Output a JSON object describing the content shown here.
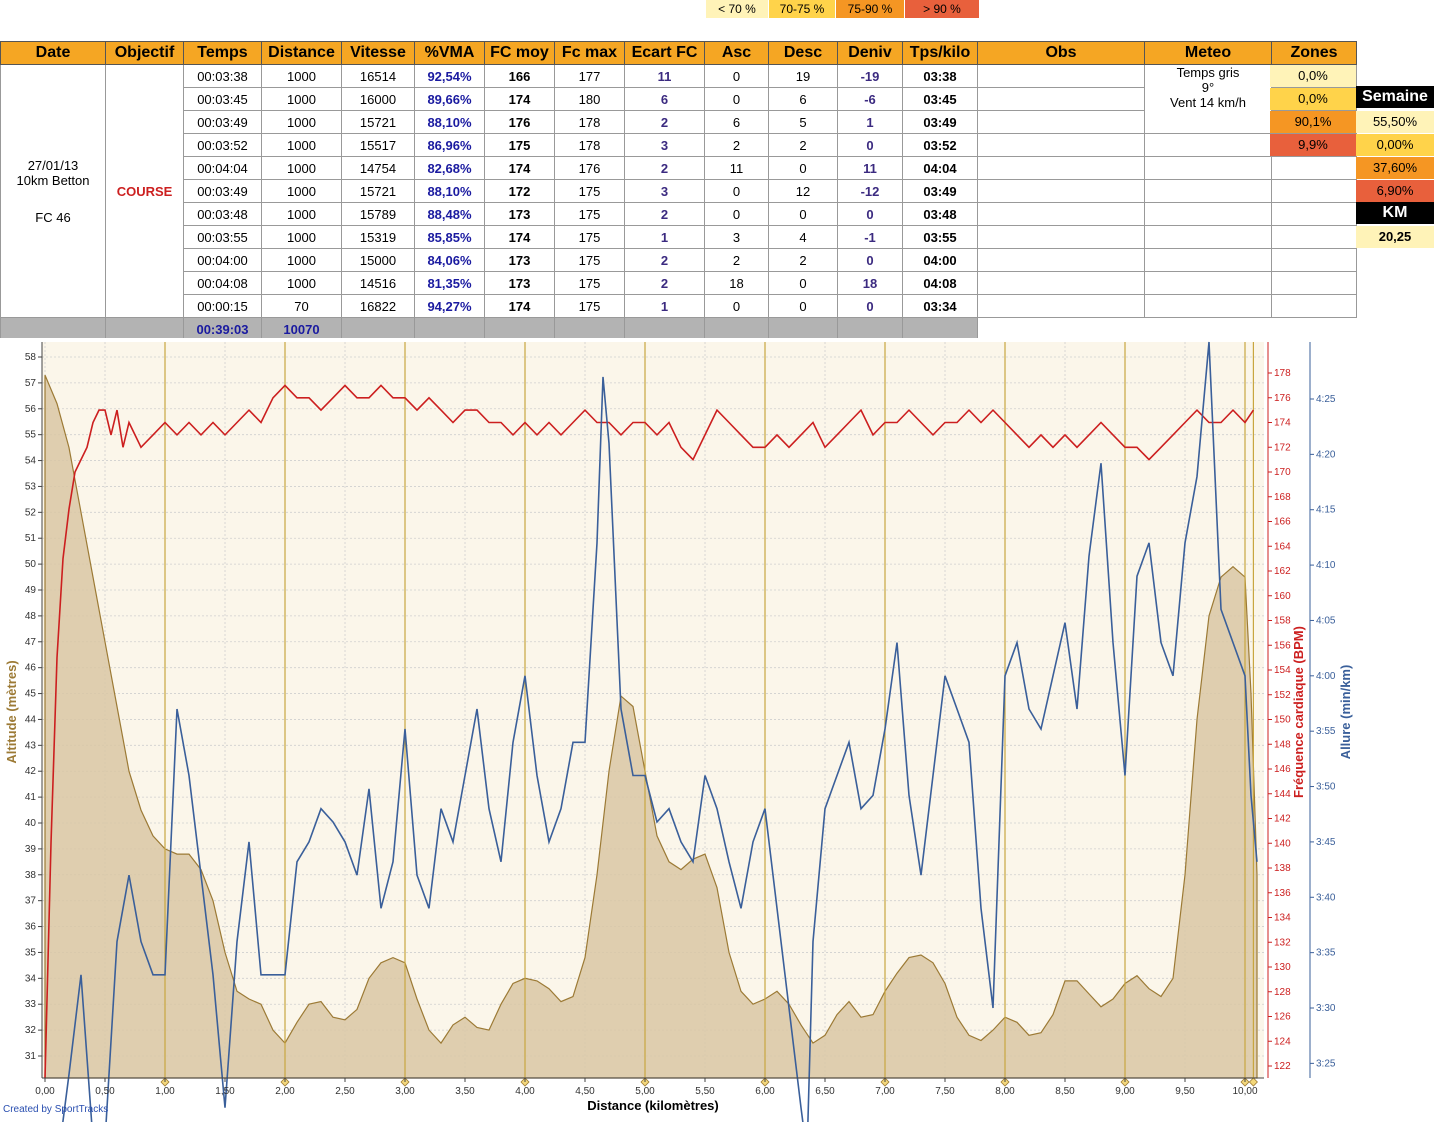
{
  "legend": [
    {
      "label": "< 70 %",
      "color": "#fff3b8"
    },
    {
      "label": "70-75 %",
      "color": "#ffd34a"
    },
    {
      "label": "75-90 %",
      "color": "#f59623"
    },
    {
      "label": "> 90 %",
      "color": "#e8603c"
    }
  ],
  "table": {
    "headers": [
      "Date",
      "Objectif",
      "Temps",
      "Distance",
      "Vitesse",
      "%VMA",
      "FC moy",
      "Fc max",
      "Ecart FC",
      "Asc",
      "Desc",
      "Deniv",
      "Tps/kilo",
      "Obs",
      "Meteo",
      "Zones"
    ],
    "date_line1": "27/01/13",
    "date_line2": "10km Betton",
    "date_line3": "FC 46",
    "objectif": "COURSE",
    "meteo_line1": "Temps gris",
    "meteo_line2": "9°",
    "meteo_line3": "Vent 14 km/h",
    "rows": [
      [
        "00:03:38",
        "1000",
        "16514",
        "92,54%",
        "166",
        "177",
        "11",
        "0",
        "19",
        "-19",
        "03:38"
      ],
      [
        "00:03:45",
        "1000",
        "16000",
        "89,66%",
        "174",
        "180",
        "6",
        "0",
        "6",
        "-6",
        "03:45"
      ],
      [
        "00:03:49",
        "1000",
        "15721",
        "88,10%",
        "176",
        "178",
        "2",
        "6",
        "5",
        "1",
        "03:49"
      ],
      [
        "00:03:52",
        "1000",
        "15517",
        "86,96%",
        "175",
        "178",
        "3",
        "2",
        "2",
        "0",
        "03:52"
      ],
      [
        "00:04:04",
        "1000",
        "14754",
        "82,68%",
        "174",
        "176",
        "2",
        "11",
        "0",
        "11",
        "04:04"
      ],
      [
        "00:03:49",
        "1000",
        "15721",
        "88,10%",
        "172",
        "175",
        "3",
        "0",
        "12",
        "-12",
        "03:49"
      ],
      [
        "00:03:48",
        "1000",
        "15789",
        "88,48%",
        "173",
        "175",
        "2",
        "0",
        "0",
        "0",
        "03:48"
      ],
      [
        "00:03:55",
        "1000",
        "15319",
        "85,85%",
        "174",
        "175",
        "1",
        "3",
        "4",
        "-1",
        "03:55"
      ],
      [
        "00:04:00",
        "1000",
        "15000",
        "84,06%",
        "173",
        "175",
        "2",
        "2",
        "2",
        "0",
        "04:00"
      ],
      [
        "00:04:08",
        "1000",
        "14516",
        "81,35%",
        "173",
        "175",
        "2",
        "18",
        "0",
        "18",
        "04:08"
      ],
      [
        "00:00:15",
        "70",
        "16822",
        "94,27%",
        "174",
        "175",
        "1",
        "0",
        "0",
        "0",
        "03:34"
      ]
    ],
    "total_time": "00:39:03",
    "total_distance": "10070",
    "zones": [
      "0,0%",
      "0,0%",
      "90,1%",
      "9,9%"
    ],
    "semaine_label": "Semaine",
    "semaine": [
      "55,50%",
      "0,00%",
      "37,60%",
      "6,90%"
    ],
    "km_label": "KM",
    "km_value": "20,25"
  },
  "chart_data": {
    "type": "line",
    "xlabel": "Distance (kilomètres)",
    "ylabel_left": "Altitude (mètres)",
    "ylabel_right1": "Fréquence cardiaque (BPM)",
    "ylabel_right2": "Allure (min/km)",
    "credit": "Created by SportTracks",
    "xlim": [
      0,
      10.1
    ],
    "xticks": [
      "0,00",
      "0,50",
      "1,00",
      "1,50",
      "2,00",
      "2,50",
      "3,00",
      "3,50",
      "4,00",
      "4,50",
      "5,00",
      "5,50",
      "6,00",
      "6,50",
      "7,00",
      "7,50",
      "8,00",
      "8,50",
      "9,00",
      "9,50",
      "10,00"
    ],
    "km_markers": [
      1,
      2,
      3,
      4,
      5,
      6,
      7,
      8,
      9,
      10,
      10.07
    ],
    "altitude_ylim": [
      30.5,
      58.5
    ],
    "altitude_ticks": [
      31,
      32,
      33,
      34,
      35,
      36,
      37,
      38,
      39,
      40,
      41,
      42,
      43,
      44,
      45,
      46,
      47,
      48,
      49,
      50,
      51,
      52,
      53,
      54,
      55,
      56,
      57,
      58
    ],
    "hr_ylim": [
      120.5,
      180
    ],
    "hr_ticks": [
      122,
      124,
      126,
      128,
      130,
      132,
      134,
      136,
      138,
      140,
      142,
      144,
      146,
      148,
      150,
      152,
      154,
      156,
      158,
      160,
      162,
      164,
      166,
      168,
      170,
      172,
      174,
      176,
      178
    ],
    "pace_ticks": [
      "4:25",
      "4:20",
      "4:15",
      "4:10",
      "4:05",
      "4:00",
      "3:55",
      "3:50",
      "3:45",
      "3:40",
      "3:35",
      "3:30",
      "3:25"
    ],
    "series": [
      {
        "name": "Altitude",
        "color": "#9c7a35",
        "x": [
          0,
          0.1,
          0.2,
          0.3,
          0.4,
          0.5,
          0.6,
          0.7,
          0.8,
          0.9,
          1.0,
          1.1,
          1.2,
          1.3,
          1.4,
          1.5,
          1.6,
          1.7,
          1.8,
          1.9,
          2.0,
          2.1,
          2.2,
          2.3,
          2.4,
          2.5,
          2.6,
          2.7,
          2.8,
          2.9,
          3.0,
          3.1,
          3.2,
          3.3,
          3.4,
          3.5,
          3.6,
          3.7,
          3.8,
          3.9,
          4.0,
          4.1,
          4.2,
          4.3,
          4.4,
          4.5,
          4.6,
          4.7,
          4.8,
          4.9,
          5.0,
          5.1,
          5.2,
          5.3,
          5.4,
          5.5,
          5.6,
          5.7,
          5.8,
          5.9,
          6.0,
          6.1,
          6.2,
          6.3,
          6.4,
          6.5,
          6.6,
          6.7,
          6.8,
          6.9,
          7.0,
          7.1,
          7.2,
          7.3,
          7.4,
          7.5,
          7.6,
          7.7,
          7.8,
          7.9,
          8.0,
          8.1,
          8.2,
          8.3,
          8.4,
          8.5,
          8.6,
          8.7,
          8.8,
          8.9,
          9.0,
          9.1,
          9.2,
          9.3,
          9.4,
          9.5,
          9.6,
          9.7,
          9.8,
          9.9,
          10.0,
          10.05,
          10.1
        ],
        "y": [
          57.3,
          56.2,
          54.5,
          52.0,
          49.5,
          47.0,
          44.5,
          42.0,
          40.5,
          39.5,
          39.0,
          38.8,
          38.8,
          38.2,
          37.0,
          35.0,
          33.5,
          33.2,
          33.0,
          32.0,
          31.5,
          32.3,
          33.0,
          33.1,
          32.5,
          32.4,
          32.8,
          34.0,
          34.6,
          34.8,
          34.6,
          33.2,
          32.0,
          31.5,
          32.2,
          32.5,
          32.1,
          32.0,
          33.0,
          33.8,
          34.0,
          33.9,
          33.6,
          33.1,
          33.3,
          34.8,
          38.0,
          42.0,
          44.9,
          44.5,
          42.0,
          39.5,
          38.5,
          38.2,
          38.6,
          38.8,
          37.5,
          35.0,
          33.5,
          33.0,
          33.2,
          33.5,
          33.0,
          32.2,
          31.5,
          31.8,
          32.6,
          33.1,
          32.5,
          32.6,
          33.5,
          34.2,
          34.8,
          34.9,
          34.6,
          33.8,
          32.5,
          31.8,
          31.6,
          32.0,
          32.5,
          32.3,
          31.8,
          31.9,
          32.6,
          33.9,
          33.9,
          33.4,
          32.9,
          33.2,
          33.8,
          34.1,
          33.6,
          33.3,
          34.0,
          38.0,
          44.0,
          48.0,
          49.5,
          49.9,
          49.5,
          45.0,
          38.0
        ]
      },
      {
        "name": "Fréquence cardiaque",
        "color": "#cc1f1f",
        "x": [
          0,
          0.05,
          0.1,
          0.15,
          0.2,
          0.25,
          0.3,
          0.35,
          0.4,
          0.45,
          0.5,
          0.55,
          0.6,
          0.65,
          0.7,
          0.75,
          0.8,
          0.9,
          1.0,
          1.1,
          1.2,
          1.3,
          1.4,
          1.5,
          1.6,
          1.7,
          1.8,
          1.9,
          2.0,
          2.1,
          2.2,
          2.3,
          2.4,
          2.5,
          2.6,
          2.7,
          2.8,
          2.9,
          3.0,
          3.1,
          3.2,
          3.3,
          3.4,
          3.5,
          3.6,
          3.7,
          3.8,
          3.9,
          4.0,
          4.1,
          4.2,
          4.3,
          4.4,
          4.5,
          4.6,
          4.7,
          4.8,
          4.9,
          5.0,
          5.1,
          5.2,
          5.3,
          5.4,
          5.5,
          5.6,
          5.7,
          5.8,
          5.9,
          6.0,
          6.1,
          6.2,
          6.3,
          6.4,
          6.5,
          6.6,
          6.7,
          6.8,
          6.9,
          7.0,
          7.1,
          7.2,
          7.3,
          7.4,
          7.5,
          7.6,
          7.7,
          7.8,
          7.9,
          8.0,
          8.1,
          8.2,
          8.3,
          8.4,
          8.5,
          8.6,
          8.7,
          8.8,
          8.9,
          9.0,
          9.1,
          9.2,
          9.3,
          9.4,
          9.5,
          9.6,
          9.7,
          9.8,
          9.9,
          10.0,
          10.07
        ],
        "y": [
          121,
          140,
          155,
          163,
          167,
          170,
          171,
          172,
          174,
          175,
          175,
          173,
          175,
          172,
          174,
          173,
          172,
          173,
          174,
          173,
          174,
          173,
          174,
          173,
          174,
          175,
          174,
          176,
          177,
          176,
          176,
          175,
          176,
          177,
          176,
          176,
          177,
          176,
          176,
          175,
          176,
          175,
          174,
          175,
          175,
          174,
          174,
          173,
          174,
          173,
          174,
          173,
          174,
          175,
          174,
          174,
          173,
          174,
          174,
          173,
          174,
          172,
          171,
          173,
          175,
          174,
          173,
          172,
          172,
          173,
          172,
          173,
          174,
          172,
          173,
          174,
          175,
          173,
          174,
          174,
          175,
          174,
          173,
          174,
          174,
          175,
          174,
          175,
          174,
          173,
          172,
          173,
          172,
          173,
          172,
          173,
          174,
          173,
          172,
          172,
          171,
          172,
          173,
          174,
          175,
          174,
          174,
          175,
          174,
          175
        ],
        "unit": "BPM"
      },
      {
        "name": "Allure",
        "color": "#3a5f9a",
        "x": [
          0,
          0.1,
          0.2,
          0.3,
          0.4,
          0.5,
          0.6,
          0.7,
          0.8,
          0.9,
          1.0,
          1.05,
          1.1,
          1.2,
          1.3,
          1.4,
          1.5,
          1.6,
          1.7,
          1.8,
          1.9,
          2.0,
          2.1,
          2.2,
          2.3,
          2.4,
          2.5,
          2.6,
          2.7,
          2.8,
          2.9,
          3.0,
          3.1,
          3.2,
          3.3,
          3.4,
          3.5,
          3.6,
          3.7,
          3.8,
          3.9,
          4.0,
          4.1,
          4.2,
          4.3,
          4.4,
          4.5,
          4.6,
          4.65,
          4.7,
          4.8,
          4.9,
          5.0,
          5.1,
          5.2,
          5.3,
          5.4,
          5.5,
          5.6,
          5.7,
          5.8,
          5.9,
          6.0,
          6.1,
          6.2,
          6.3,
          6.35,
          6.4,
          6.5,
          6.6,
          6.7,
          6.8,
          6.9,
          7.0,
          7.1,
          7.2,
          7.3,
          7.4,
          7.5,
          7.6,
          7.7,
          7.8,
          7.9,
          8.0,
          8.1,
          8.2,
          8.3,
          8.4,
          8.5,
          8.6,
          8.7,
          8.8,
          8.9,
          9.0,
          9.1,
          9.2,
          9.3,
          9.4,
          9.5,
          9.6,
          9.7,
          9.8,
          9.9,
          10.0,
          10.05,
          10.1
        ],
        "y": [
          3.3,
          3.26,
          3.4,
          3.55,
          3.3,
          3.3,
          3.6,
          3.7,
          3.6,
          3.55,
          3.55,
          3.75,
          3.95,
          3.85,
          3.7,
          3.55,
          3.35,
          3.6,
          3.75,
          3.55,
          3.55,
          3.55,
          3.72,
          3.75,
          3.8,
          3.78,
          3.75,
          3.7,
          3.83,
          3.65,
          3.72,
          3.92,
          3.7,
          3.65,
          3.8,
          3.75,
          3.85,
          3.95,
          3.8,
          3.72,
          3.9,
          4.0,
          3.85,
          3.75,
          3.8,
          3.9,
          3.9,
          4.2,
          4.45,
          4.35,
          3.95,
          3.85,
          3.85,
          3.78,
          3.8,
          3.75,
          3.72,
          3.85,
          3.8,
          3.72,
          3.65,
          3.75,
          3.8,
          3.65,
          3.5,
          3.35,
          3.28,
          3.6,
          3.8,
          3.85,
          3.9,
          3.8,
          3.82,
          3.92,
          4.05,
          3.82,
          3.7,
          3.85,
          4.0,
          3.95,
          3.9,
          3.65,
          3.5,
          4.0,
          4.05,
          3.95,
          3.92,
          4.0,
          4.08,
          3.95,
          4.18,
          4.32,
          4.05,
          3.85,
          4.15,
          4.2,
          4.05,
          4.0,
          4.2,
          4.3,
          4.55,
          4.1,
          4.05,
          4.0,
          3.82,
          3.72
        ]
      }
    ]
  }
}
